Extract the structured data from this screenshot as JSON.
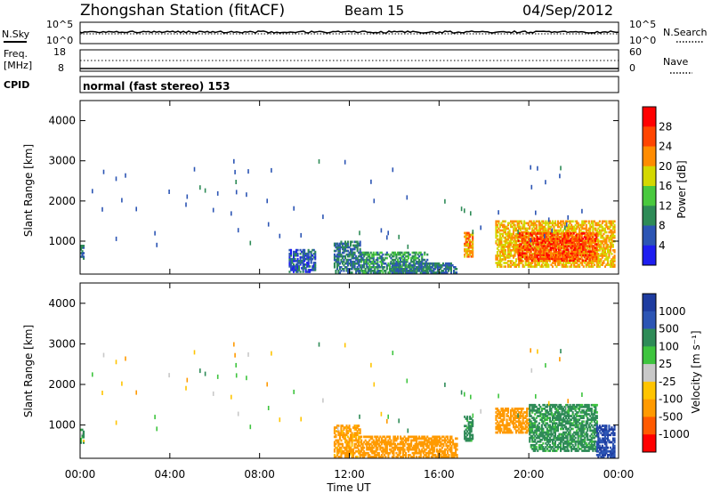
{
  "header": {
    "title": "Zhongshan Station (fitACF)",
    "beam": "Beam 15",
    "date": "04/Sep/2012"
  },
  "nsky_panel": {
    "left_label": "N.Sky",
    "left_ticks": [
      "10^5",
      "10^0"
    ],
    "right_ticks": [
      "10^5",
      "10^0"
    ],
    "right_label": "N.Search"
  },
  "freq_panel": {
    "label_line1": "Freq.",
    "label_line2": "[MHz]",
    "left_ticks": [
      "18",
      "8"
    ],
    "right_ticks": [
      "60",
      "0"
    ],
    "right_label": "Nave"
  },
  "cpid_panel": {
    "label": "CPID",
    "text": "normal (fast stereo) 153"
  },
  "colors": {
    "power_scale": [
      "#1e1ef0",
      "#2c55b4",
      "#2e8b57",
      "#49c93e",
      "#d4d800",
      "#ff8c00",
      "#ff4500",
      "#ff0000"
    ],
    "velocity_scale": [
      "#ff0000",
      "#ff5a00",
      "#ff9a00",
      "#ffc400",
      "#c8c8c8",
      "#3ec43e",
      "#2e8b57",
      "#2c55b4",
      "#1e3ca0"
    ]
  },
  "chart_data": [
    {
      "type": "heatmap",
      "name": "power",
      "ylabel": "Slant Range [km]",
      "yticks": [
        "4000",
        "3000",
        "2000",
        "1000"
      ],
      "xticks": [
        "00:00",
        "04:00",
        "08:00",
        "12:00",
        "16:00",
        "20:00",
        "00:00"
      ],
      "ylim": [
        180,
        4500
      ],
      "colorbar": {
        "label": "Power [dB]",
        "ticks": [
          "28",
          "24",
          "20",
          "16",
          "12",
          "8",
          "4"
        ],
        "range": [
          0,
          32
        ]
      },
      "regions": [
        {
          "t": [
            0.0,
            0.15
          ],
          "r": [
            550,
            900
          ],
          "value": 8
        },
        {
          "t": [
            9.3,
            10.5
          ],
          "r": [
            220,
            800
          ],
          "value": 6
        },
        {
          "t": [
            11.3,
            12.5
          ],
          "r": [
            200,
            1000
          ],
          "value": 8
        },
        {
          "t": [
            12.5,
            15.5
          ],
          "r": [
            200,
            700
          ],
          "value": 10
        },
        {
          "t": [
            13.8,
            16.8
          ],
          "r": [
            200,
            450
          ],
          "value": 8
        },
        {
          "t": [
            17.1,
            17.5
          ],
          "r": [
            600,
            1200
          ],
          "value": 22
        },
        {
          "t": [
            18.5,
            23.8
          ],
          "r": [
            350,
            1500
          ],
          "value": 20
        },
        {
          "t": [
            19.5,
            23.0
          ],
          "r": [
            500,
            1200
          ],
          "value": 26
        }
      ]
    },
    {
      "type": "heatmap",
      "name": "velocity",
      "ylabel": "Slant Range [km]",
      "yticks": [
        "4000",
        "3000",
        "2000",
        "1000"
      ],
      "xticks": [
        "00:00",
        "04:00",
        "08:00",
        "12:00",
        "16:00",
        "20:00",
        "00:00"
      ],
      "ylim": [
        180,
        4500
      ],
      "xlabel": "Time UT",
      "colorbar": {
        "label": "Velocity [m s⁻¹]",
        "ticks": [
          "1000",
          "500",
          "100",
          "25",
          "-25",
          "-100",
          "-500",
          "-1000"
        ]
      },
      "regions": [
        {
          "t": [
            0.0,
            0.15
          ],
          "r": [
            550,
            900
          ],
          "value": 100
        },
        {
          "t": [
            11.3,
            12.5
          ],
          "r": [
            200,
            1000
          ],
          "value": -200
        },
        {
          "t": [
            12.5,
            16.8
          ],
          "r": [
            200,
            700
          ],
          "value": -300
        },
        {
          "t": [
            17.1,
            17.5
          ],
          "r": [
            600,
            1200
          ],
          "value": 200
        },
        {
          "t": [
            18.5,
            20.0
          ],
          "r": [
            800,
            1400
          ],
          "value": -300
        },
        {
          "t": [
            20.0,
            23.0
          ],
          "r": [
            350,
            1500
          ],
          "value": 200
        },
        {
          "t": [
            23.0,
            23.8
          ],
          "r": [
            200,
            1000
          ],
          "value": 1000
        }
      ]
    }
  ]
}
